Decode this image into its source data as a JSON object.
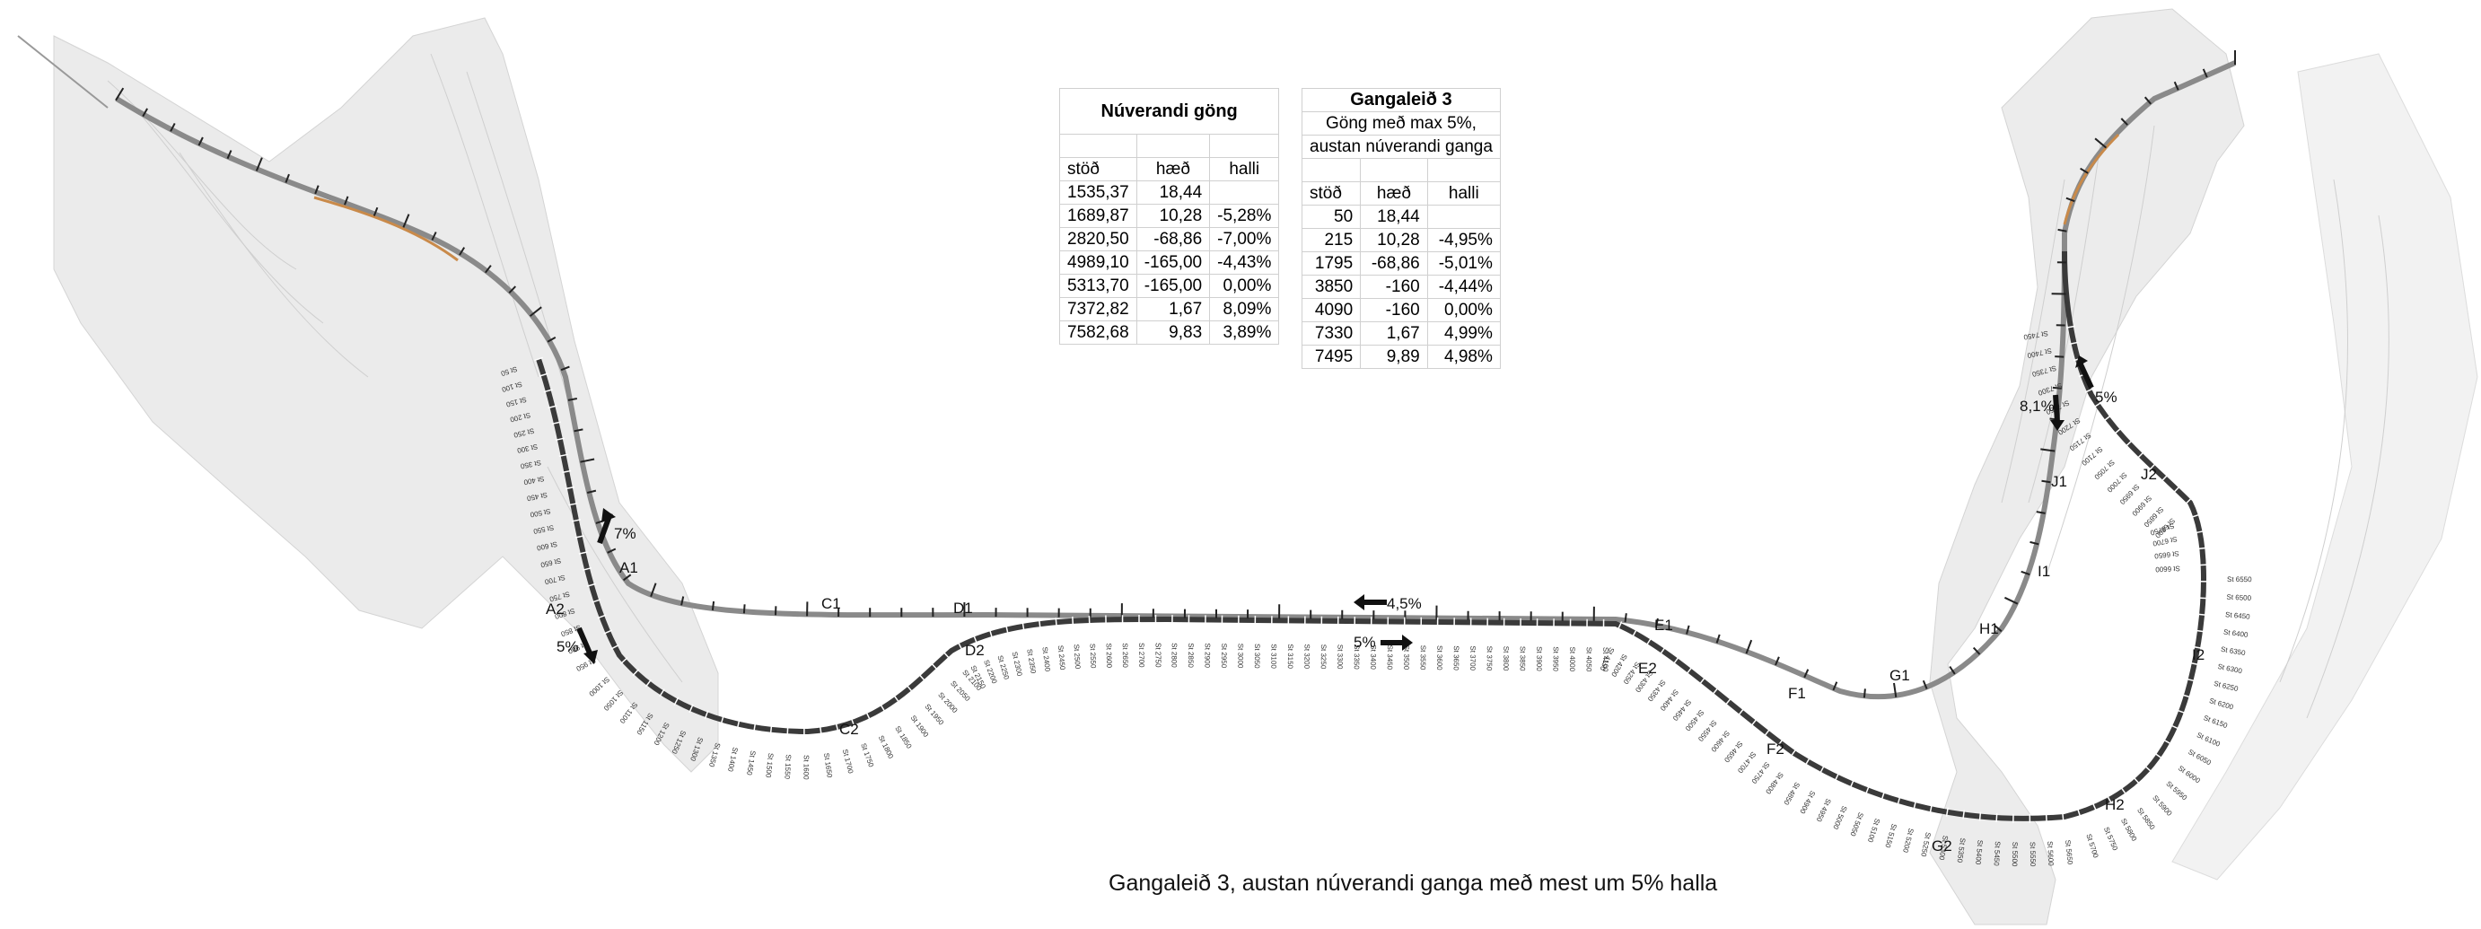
{
  "table_existing": {
    "title": "Núverandi göng",
    "headers": [
      "stöð",
      "hæð",
      "halli"
    ],
    "rows": [
      [
        "1535,37",
        "18,44",
        ""
      ],
      [
        "1689,87",
        "10,28",
        "-5,28%"
      ],
      [
        "2820,50",
        "-68,86",
        "-7,00%"
      ],
      [
        "4989,10",
        "-165,00",
        "-4,43%"
      ],
      [
        "5313,70",
        "-165,00",
        "0,00%"
      ],
      [
        "7372,82",
        "1,67",
        "8,09%"
      ],
      [
        "7582,68",
        "9,83",
        "3,89%"
      ]
    ]
  },
  "table_route3": {
    "title": "Gangaleið 3",
    "subtitle_1": "Göng með max 5%,",
    "subtitle_2": "austan núverandi ganga",
    "headers": [
      "stöð",
      "hæð",
      "halli"
    ],
    "rows": [
      [
        "50",
        "18,44",
        ""
      ],
      [
        "215",
        "10,28",
        "-4,95%"
      ],
      [
        "1795",
        "-68,86",
        "-5,01%"
      ],
      [
        "3850",
        "-160",
        "-4,44%"
      ],
      [
        "4090",
        "-160",
        "0,00%"
      ],
      [
        "7330",
        "1,67",
        "4,99%"
      ],
      [
        "7495",
        "9,89",
        "4,98%"
      ]
    ]
  },
  "caption": "Gangaleið 3, austan núverandi ganga með mest um 5% halla",
  "map_labels": {
    "A1": "A1",
    "A2": "A2",
    "C1": "C1",
    "C2": "C2",
    "D1": "D1",
    "D2": "D2",
    "E1": "E1",
    "E2": "E2",
    "F1": "F1",
    "F2": "F2",
    "G1": "G1",
    "G2": "G2",
    "H1": "H1",
    "H2": "H2",
    "I1": "I1",
    "I2": "I2",
    "J1": "J1",
    "J2": "J2"
  },
  "grade_labels": {
    "west_existing": "7%",
    "west_route": "5%",
    "middle_existing": "4,5%",
    "middle_route": "5%",
    "east_existing": "8,1%",
    "east_route": "5%"
  },
  "station_labels_west": [
    "St 50",
    "St 100",
    "St 150",
    "St 200",
    "St 250",
    "St 300",
    "St 350",
    "St 400",
    "St 450",
    "St 500",
    "St 550",
    "St 600",
    "St 650",
    "St 700",
    "St 750",
    "St 800",
    "St 850",
    "St 900",
    "St 950",
    "St 1000",
    "St 1050",
    "St 1100",
    "St 1150",
    "St 1200",
    "St 1250",
    "St 1300",
    "St 1350",
    "St 1400",
    "St 1450",
    "St 1500",
    "St 1550",
    "St 1600",
    "St 1650",
    "St 1700",
    "St 1750",
    "St 1800",
    "St 1850",
    "St 1900",
    "St 1950",
    "St 2000",
    "St 2050",
    "St 2100",
    "St 2150",
    "St 2200",
    "St 2250",
    "St 2300",
    "St 2350",
    "St 2400",
    "St 2450",
    "St 2500",
    "St 2550",
    "St 2600",
    "St 2650",
    "St 2700",
    "St 2750",
    "St 2800",
    "St 2850",
    "St 2900",
    "St 2950",
    "St 3000",
    "St 3050",
    "St 3100",
    "St 3150",
    "St 3200",
    "St 3250",
    "St 3300",
    "St 3350",
    "St 3400",
    "St 3450",
    "St 3500",
    "St 3550",
    "St 3600",
    "St 3650",
    "St 3700",
    "St 3750",
    "St 3800",
    "St 3850",
    "St 3900",
    "St 3950",
    "St 4000",
    "St 4050",
    "St 4100",
    "St 4150",
    "St 4200",
    "St 4250",
    "St 4300",
    "St 4350",
    "St 4400",
    "St 4450",
    "St 4500",
    "St 4550",
    "St 4600",
    "St 4650",
    "St 4700",
    "St 4750",
    "St 4800",
    "St 4850",
    "St 4900",
    "St 4950",
    "St 5000",
    "St 5050",
    "St 5100",
    "St 5150",
    "St 5200",
    "St 5250",
    "St 5300",
    "St 5350",
    "St 5400",
    "St 5450",
    "St 5500",
    "St 5550",
    "St 5600",
    "St 5650",
    "St 5700",
    "St 5750",
    "St 5800"
  ],
  "station_labels_east": [
    "St 5850",
    "St 5900",
    "St 5950",
    "St 6000",
    "St 6050",
    "St 6100",
    "St 6150",
    "St 6200",
    "St 6250",
    "St 6300",
    "St 6350",
    "St 6400",
    "St 6450",
    "St 6500",
    "St 6550",
    "St 6600",
    "St 6650",
    "St 6700",
    "St 6750",
    "St 6800",
    "St 6850",
    "St 6900",
    "St 6950",
    "St 7000",
    "St 7050",
    "St 7100",
    "St 7150",
    "St 7200",
    "St 7250",
    "St 7300",
    "St 7350",
    "St 7400",
    "St 7450"
  ],
  "colors": {
    "terrain": "#e6e6e6",
    "terrain_line": "#c8c8c8",
    "route": "#555555",
    "existing": "#888888",
    "highlight": "#c98a4a"
  }
}
